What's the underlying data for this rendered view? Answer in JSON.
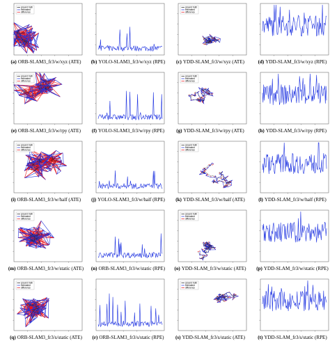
{
  "figure": {
    "legend": [
      "ground truth",
      "estimated",
      "difference"
    ],
    "panels": [
      {
        "label": "(a)",
        "caption": "ORB-SLAM3_fr3/w/xyz (ATE)"
      },
      {
        "label": "(b)",
        "caption": "YOLO-SLAM3_fr3/w/xyz (RPE)"
      },
      {
        "label": "(c)",
        "caption": "YDD-SLAM_fr3/w/xyz (ATE)"
      },
      {
        "label": "(d)",
        "caption": "YDD-SLAM_fr3/w/xyz (RPE)"
      },
      {
        "label": "(e)",
        "caption": "ORB-SLAM3_fr3/w/rpy (ATE)"
      },
      {
        "label": "(f)",
        "caption": "YOLO-SLAM3_fr3/w/rpy (RPE)"
      },
      {
        "label": "(g)",
        "caption": "YDD-SLAM_fr3/w/rpy (ATE)"
      },
      {
        "label": "(h)",
        "caption": "YDD-SLAM_fr3/w/rpy (RPE)"
      },
      {
        "label": "(i)",
        "caption": "ORB-SLAM3_fr3/w/half (ATE)"
      },
      {
        "label": "(j)",
        "caption": "YOLO-SLAM3_fr3/w/half (RPE)"
      },
      {
        "label": "(k)",
        "caption": "YDD-SLAM_fr3/w/half (ATE)"
      },
      {
        "label": "(l)",
        "caption": "YDD-SLAM_fr3/w/half (RPE)"
      },
      {
        "label": "(m)",
        "caption": "ORB-SLAM3_fr3/w/static (ATE)"
      },
      {
        "label": "(n)",
        "caption": "ORB-SLAM3_fr3/w/static (RPE)"
      },
      {
        "label": "(o)",
        "caption": "YDD-SLAM_fr3/w/static (ATE)"
      },
      {
        "label": "(p)",
        "caption": "YDD-SLAM_fr3/w/static (RPE)"
      },
      {
        "label": "(q)",
        "caption": "ORB-SLAM3_fr3/s/static (ATE)"
      },
      {
        "label": "(r)",
        "caption": "ORB-SLAM3_fr3/s/static (RPE)"
      },
      {
        "label": "(s)",
        "caption": "YDD-SLAM_fr3/s/static (ATE)"
      },
      {
        "label": "(t)",
        "caption": "YDD-SLAM_fr3/s/static (RPE)"
      }
    ]
  }
}
